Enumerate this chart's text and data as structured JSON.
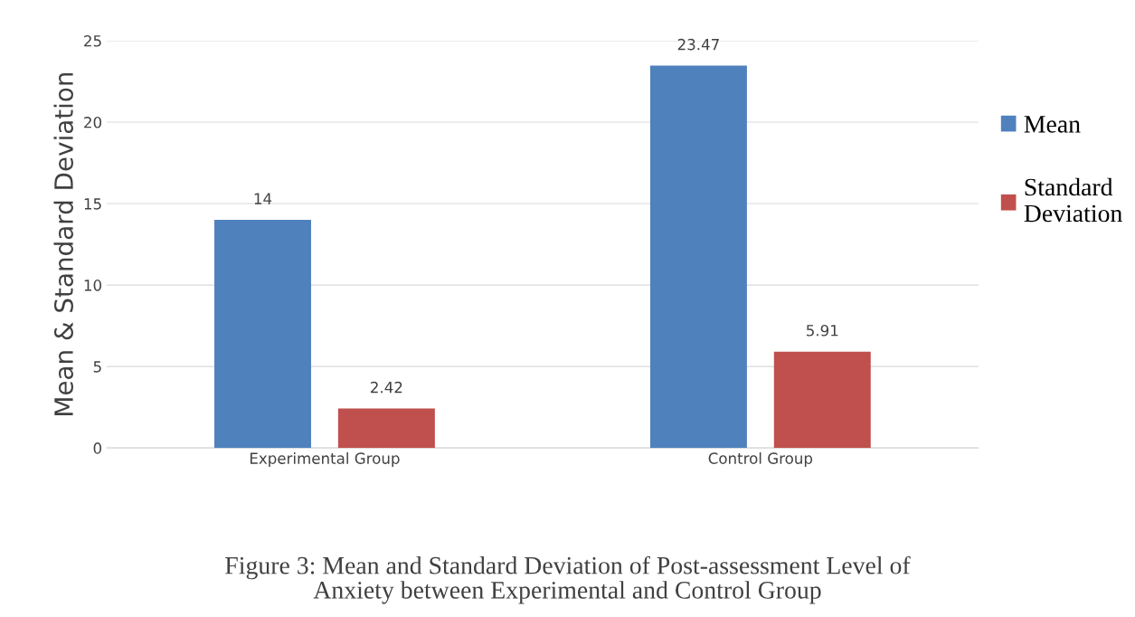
{
  "chart_data": {
    "type": "bar",
    "ylabel": "Mean & Standard Deviation",
    "categories": [
      "Experimental Group",
      "Control Group"
    ],
    "series": [
      {
        "name": "Mean",
        "color": "#4f81bd",
        "values": [
          14,
          23.47
        ]
      },
      {
        "name": "Standard Deviation",
        "color": "#c0504d",
        "values": [
          2.42,
          5.91
        ]
      }
    ],
    "ylim": [
      0,
      25
    ],
    "yticks": [
      0,
      5,
      10,
      15,
      20,
      25
    ],
    "grid": "y",
    "legend": "right",
    "data_labels": true,
    "annotations": [
      "Figure 3: Mean and Standard Deviation of Post-assessment Level of\nAnxiety between Experimental and Control Group"
    ]
  }
}
